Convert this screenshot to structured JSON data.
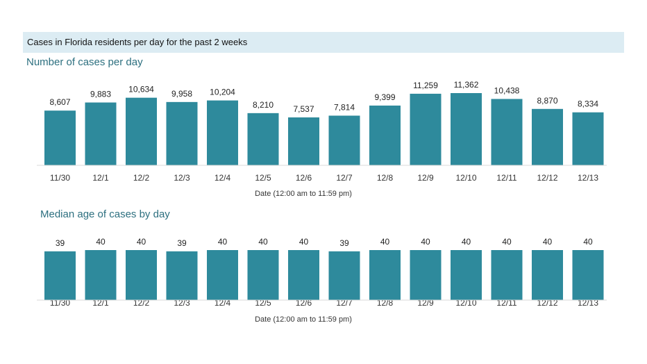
{
  "header": {
    "title": "Cases in Florida residents per day for the past 2 weeks"
  },
  "colors": {
    "bar": "#2e8a9c",
    "header_band": "#dcecf3",
    "subtitle": "#2c6f7f"
  },
  "chart_data": [
    {
      "type": "bar",
      "title": "Number of cases per day",
      "xlabel": "Date (12:00 am to 11:59 pm)",
      "ylabel": "",
      "categories": [
        "11/30",
        "12/1",
        "12/2",
        "12/3",
        "12/4",
        "12/5",
        "12/6",
        "12/7",
        "12/8",
        "12/9",
        "12/10",
        "12/11",
        "12/12",
        "12/13"
      ],
      "values": [
        8607,
        9883,
        10634,
        9958,
        10204,
        8210,
        7537,
        7814,
        9399,
        11259,
        11362,
        10438,
        8870,
        8334
      ],
      "value_labels": [
        "8,607",
        "9,883",
        "10,634",
        "9,958",
        "10,204",
        "8,210",
        "7,537",
        "7,814",
        "9,399",
        "11,259",
        "11,362",
        "10,438",
        "8,870",
        "8,334"
      ],
      "ylim": [
        0,
        11362
      ],
      "grid": false,
      "legend": "none"
    },
    {
      "type": "bar",
      "title": "Median age of cases by day",
      "xlabel": "Date (12:00 am to 11:59 pm)",
      "ylabel": "",
      "categories": [
        "11/30",
        "12/1",
        "12/2",
        "12/3",
        "12/4",
        "12/5",
        "12/6",
        "12/7",
        "12/8",
        "12/9",
        "12/10",
        "12/11",
        "12/12",
        "12/13"
      ],
      "values": [
        39,
        40,
        40,
        39,
        40,
        40,
        40,
        39,
        40,
        40,
        40,
        40,
        40,
        40
      ],
      "value_labels": [
        "39",
        "40",
        "40",
        "39",
        "40",
        "40",
        "40",
        "39",
        "40",
        "40",
        "40",
        "40",
        "40",
        "40"
      ],
      "ylim": [
        0,
        40
      ],
      "grid": false,
      "legend": "none"
    }
  ]
}
